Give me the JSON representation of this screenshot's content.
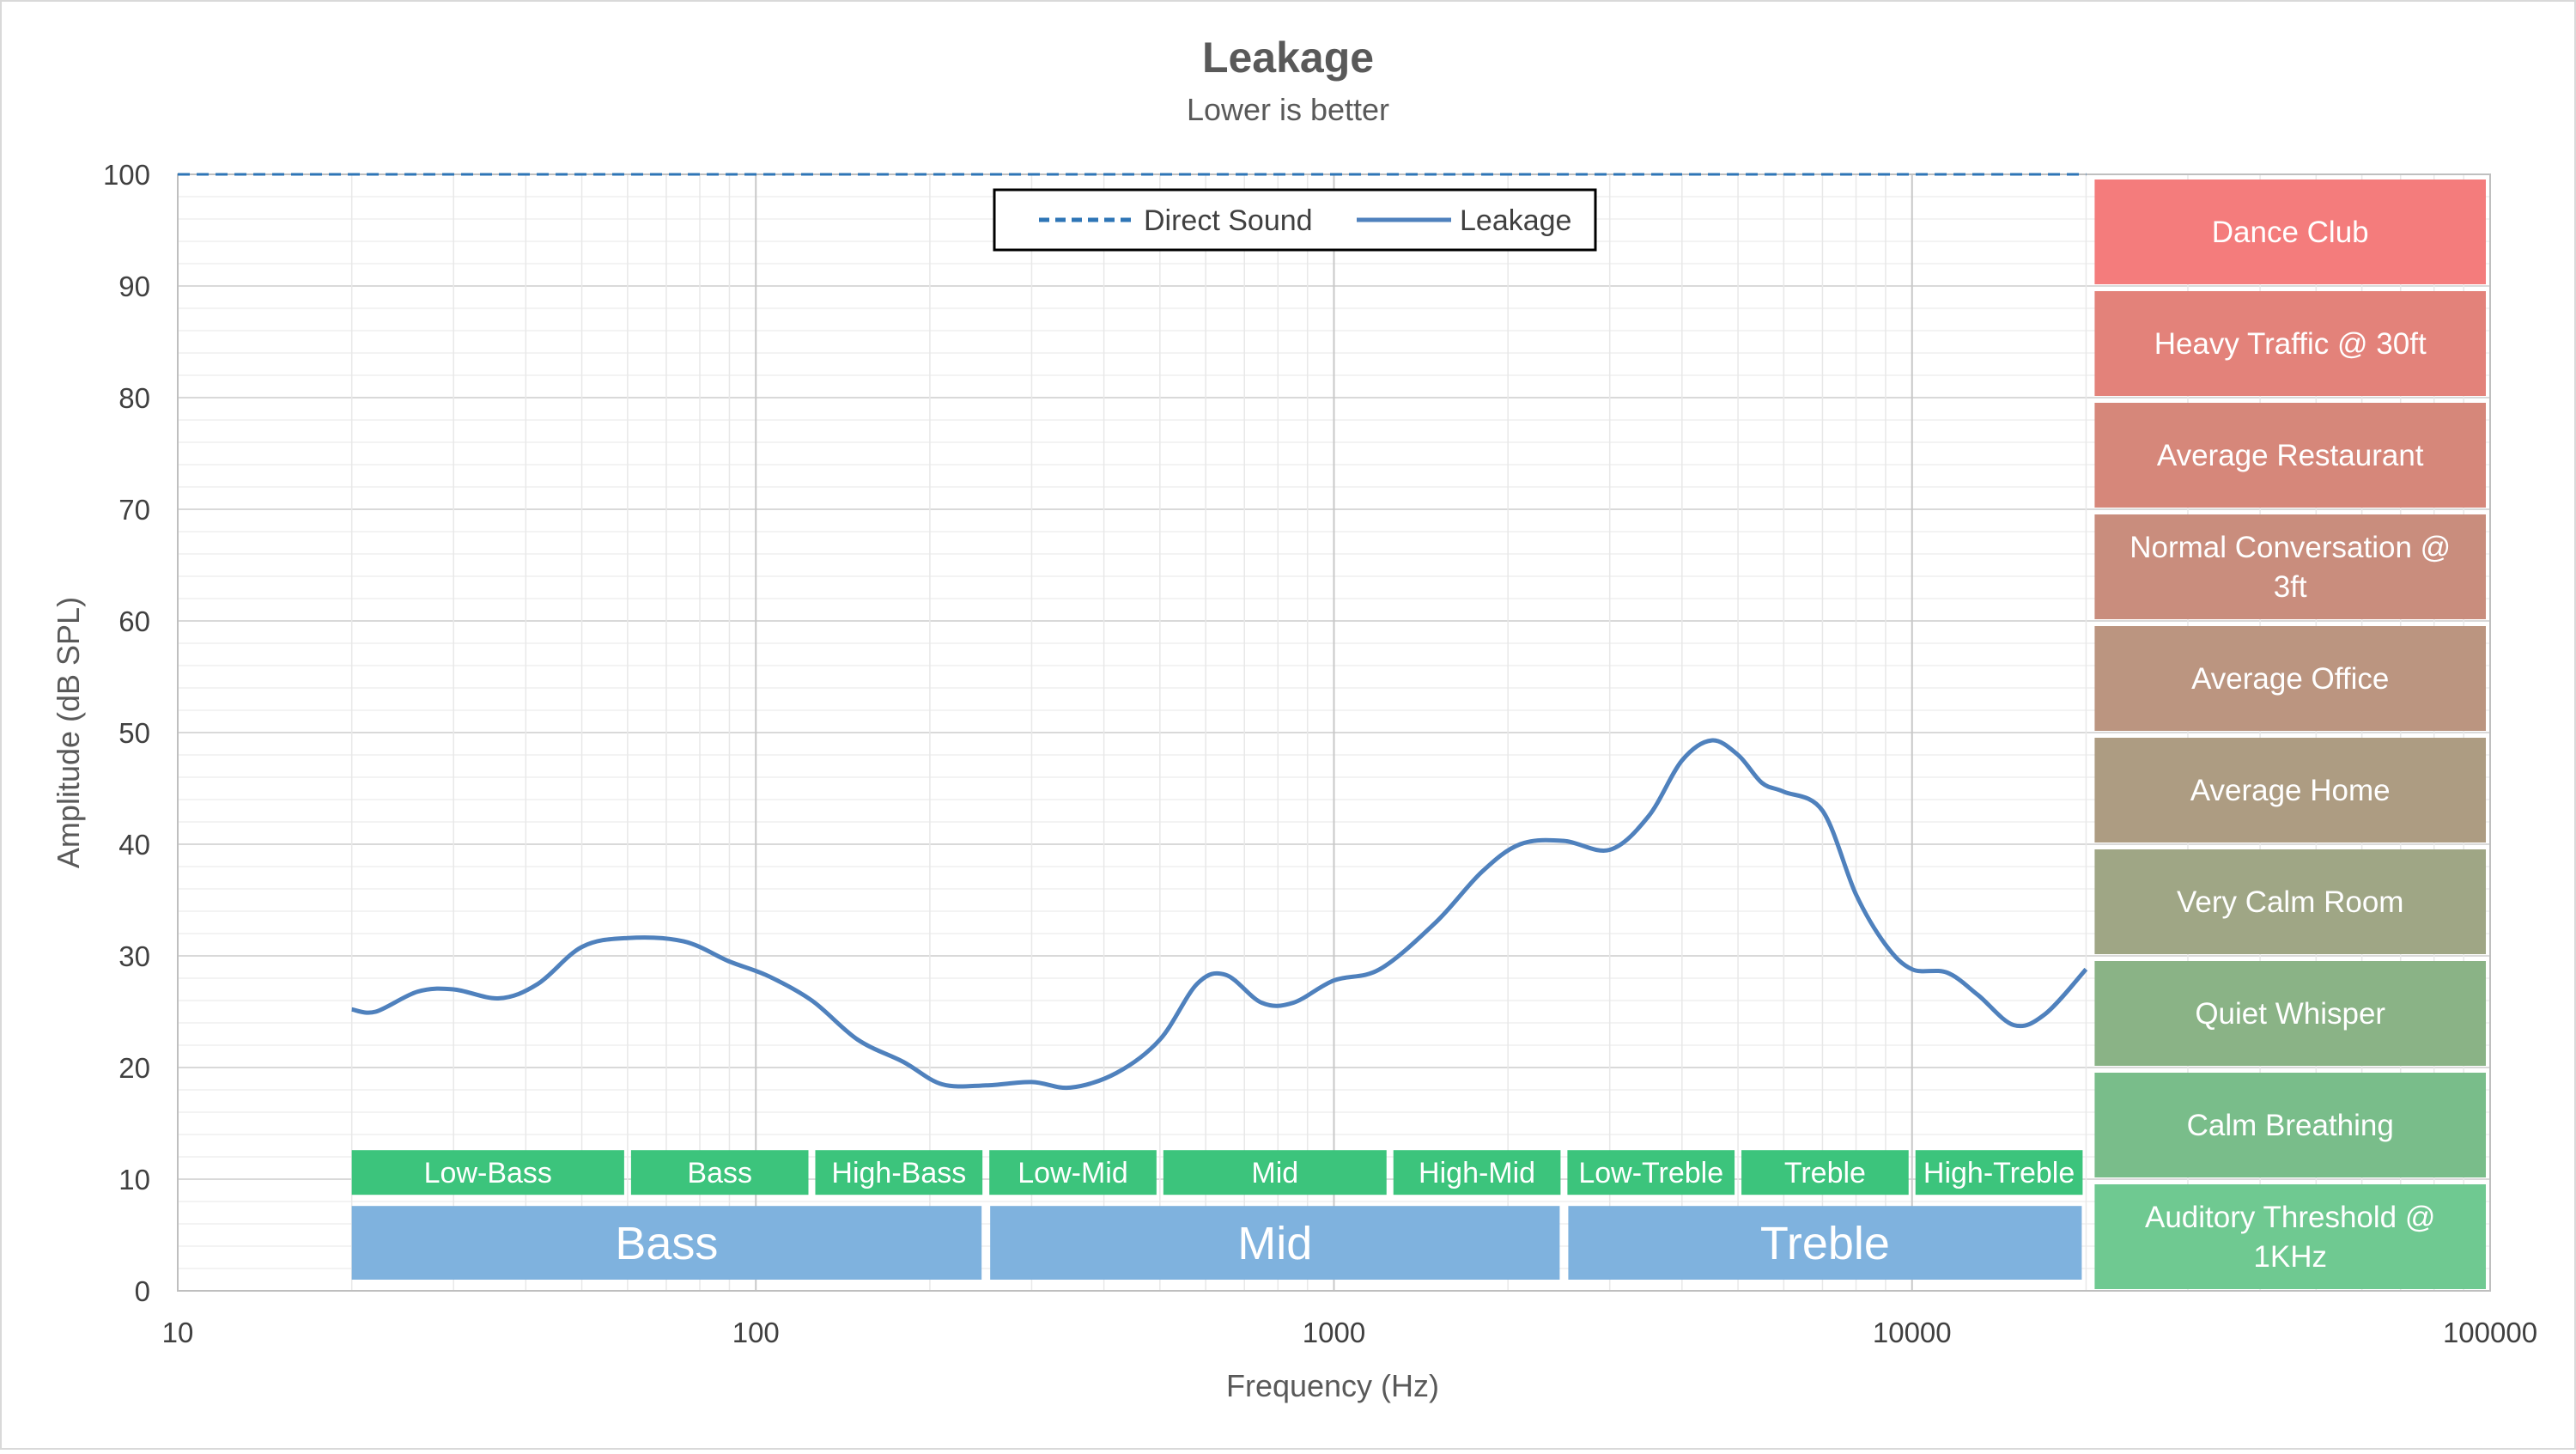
{
  "chart_data": {
    "type": "line",
    "title": "Leakage",
    "subtitle": "Lower  is better",
    "xlabel": "Frequency (Hz)",
    "ylabel": "Amplitude (dB SPL)",
    "x_scale": "log",
    "xlim": [
      10,
      100000
    ],
    "ylim": [
      0,
      100
    ],
    "x_ticks": [
      "10",
      "100",
      "1000",
      "10000",
      "100000"
    ],
    "y_ticks": [
      "0",
      "10",
      "20",
      "30",
      "40",
      "50",
      "60",
      "70",
      "80",
      "90",
      "100"
    ],
    "grid": true,
    "legend_position": "top-center",
    "legend": [
      "Direct Sound",
      "Leakage"
    ],
    "series": [
      {
        "name": "Direct Sound",
        "style": "dashed",
        "color": "#2e75b6",
        "x": [
          10,
          20000
        ],
        "y": [
          100,
          100
        ]
      },
      {
        "name": "Leakage",
        "style": "solid",
        "color": "#4f81bd",
        "x": [
          20,
          22,
          26,
          30,
          36,
          42,
          50,
          60,
          75,
          90,
          105,
          125,
          150,
          180,
          210,
          250,
          300,
          350,
          420,
          500,
          580,
          650,
          750,
          850,
          1000,
          1200,
          1500,
          1800,
          2100,
          2500,
          3000,
          3500,
          4000,
          4500,
          5000,
          5500,
          6000,
          7000,
          8000,
          9000,
          10000,
          11500,
          13000,
          15000,
          17000,
          20000
        ],
        "y": [
          25.2,
          25.0,
          26.8,
          27.0,
          26.2,
          27.5,
          30.8,
          31.6,
          31.3,
          29.5,
          28.2,
          26.0,
          22.5,
          20.5,
          18.5,
          18.4,
          18.7,
          18.2,
          19.5,
          22.5,
          27.5,
          28.3,
          25.8,
          25.8,
          27.8,
          28.8,
          33.0,
          37.5,
          40.0,
          40.3,
          39.5,
          42.5,
          47.5,
          49.3,
          48.0,
          45.5,
          44.7,
          43.0,
          35.5,
          31.0,
          28.8,
          28.5,
          26.5,
          23.8,
          24.8,
          28.8
        ]
      }
    ]
  },
  "bands": {
    "sub": [
      {
        "label": "Low-Bass",
        "from": 20,
        "to": 60
      },
      {
        "label": "Bass",
        "from": 60,
        "to": 125
      },
      {
        "label": "High-Bass",
        "from": 125,
        "to": 250
      },
      {
        "label": "Low-Mid",
        "from": 250,
        "to": 500
      },
      {
        "label": "Mid",
        "from": 500,
        "to": 1250
      },
      {
        "label": "High-Mid",
        "from": 1250,
        "to": 2500
      },
      {
        "label": "Low-Treble",
        "from": 2500,
        "to": 5000
      },
      {
        "label": "Treble",
        "from": 5000,
        "to": 10000
      },
      {
        "label": "High-Treble",
        "from": 10000,
        "to": 20000
      }
    ],
    "main": [
      {
        "label": "Bass",
        "from": 20,
        "to": 250
      },
      {
        "label": "Mid",
        "from": 250,
        "to": 2500
      },
      {
        "label": "Treble",
        "from": 2500,
        "to": 20000
      }
    ],
    "sub_color": "#3cc47c",
    "main_color": "#7fb2de"
  },
  "reference_levels": [
    {
      "lines": [
        "Dance Club"
      ],
      "from": 90,
      "to": 100,
      "color": "#f47c7c"
    },
    {
      "lines": [
        "Heavy Traffic @ 30ft"
      ],
      "from": 80,
      "to": 90,
      "color": "#e3827a"
    },
    {
      "lines": [
        "Average Restaurant"
      ],
      "from": 70,
      "to": 80,
      "color": "#d6877a"
    },
    {
      "lines": [
        "Normal Conversation @",
        "3ft"
      ],
      "from": 60,
      "to": 70,
      "color": "#c98d7d"
    },
    {
      "lines": [
        "Average Office"
      ],
      "from": 50,
      "to": 60,
      "color": "#bb9580"
    },
    {
      "lines": [
        "Average Home"
      ],
      "from": 40,
      "to": 50,
      "color": "#ad9c82"
    },
    {
      "lines": [
        "Very Calm Room"
      ],
      "from": 30,
      "to": 40,
      "color": "#9fa685"
    },
    {
      "lines": [
        "Quiet Whisper"
      ],
      "from": 20,
      "to": 30,
      "color": "#8ab386"
    },
    {
      "lines": [
        "Calm Breathing"
      ],
      "from": 10,
      "to": 20,
      "color": "#79bd8a"
    },
    {
      "lines": [
        "Auditory Threshold @",
        "1KHz"
      ],
      "from": 0,
      "to": 10,
      "color": "#6fc991"
    }
  ]
}
